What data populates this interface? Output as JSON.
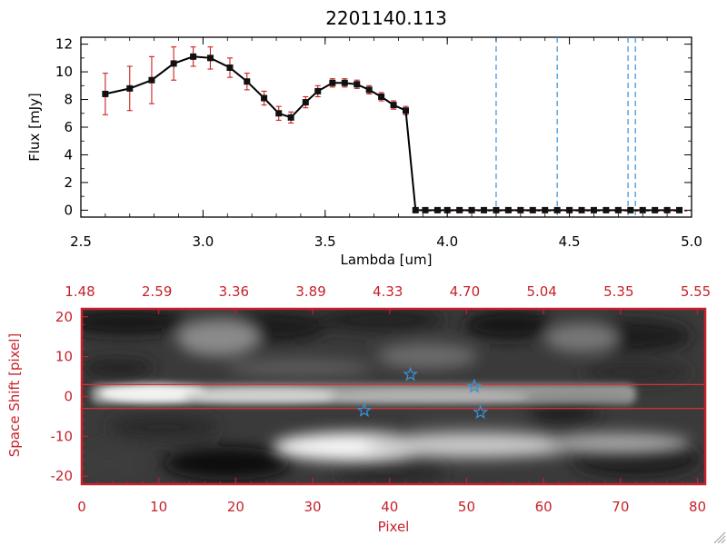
{
  "title": "2201140.113",
  "colors": {
    "data_line": "#000000",
    "error_bars": "#cc2020",
    "markers": "#111111",
    "reference_lines": "#3a8fd6",
    "image_frame": "#c8212a",
    "image_axis_text": "#c8212a",
    "aperture_lines": "#d83030",
    "stars": "#3a8fd6"
  },
  "chart_data": [
    {
      "type": "line",
      "title": "2201140.113",
      "xlabel": "Lambda [um]",
      "ylabel": "Flux [mJy]",
      "xlim": [
        2.5,
        5.0
      ],
      "ylim": [
        -0.5,
        12.5
      ],
      "x_ticks": [
        2.5,
        3.0,
        3.5,
        4.0,
        4.5,
        5.0
      ],
      "x_tick_labels": [
        "2.5",
        "3.0",
        "3.5",
        "4.0",
        "4.5",
        "5.0"
      ],
      "y_ticks": [
        0,
        2,
        4,
        6,
        8,
        10,
        12
      ],
      "y_tick_labels": [
        "0",
        "2",
        "4",
        "6",
        "8",
        "10",
        "12"
      ],
      "grid": false,
      "series": [
        {
          "x": [
            2.6,
            2.7,
            2.79,
            2.88,
            2.96,
            3.03,
            3.11,
            3.18,
            3.25,
            3.31,
            3.36,
            3.42,
            3.47,
            3.53,
            3.58,
            3.63,
            3.68,
            3.73,
            3.78,
            3.83,
            3.87,
            3.91,
            3.96,
            4.0,
            4.05,
            4.1,
            4.15,
            4.2,
            4.25,
            4.3,
            4.35,
            4.4,
            4.45,
            4.5,
            4.55,
            4.6,
            4.65,
            4.7,
            4.75,
            4.8,
            4.85,
            4.9,
            4.95
          ],
          "values": [
            8.4,
            8.8,
            9.4,
            10.6,
            11.1,
            11.0,
            10.3,
            9.3,
            8.1,
            7.0,
            6.7,
            7.8,
            8.6,
            9.2,
            9.2,
            9.1,
            8.7,
            8.2,
            7.6,
            7.2,
            0.0,
            0.0,
            0.0,
            0.0,
            0.0,
            0.0,
            0.0,
            0.0,
            0.0,
            0.0,
            0.0,
            0.0,
            0.0,
            0.0,
            0.0,
            0.0,
            0.0,
            0.0,
            0.0,
            0.0,
            0.0,
            0.0,
            0.0
          ],
          "errors": [
            1.5,
            1.6,
            1.7,
            1.2,
            0.7,
            0.8,
            0.7,
            0.6,
            0.5,
            0.5,
            0.4,
            0.4,
            0.4,
            0.3,
            0.3,
            0.3,
            0.3,
            0.3,
            0.3,
            0.3,
            0.0,
            0.0,
            0.0,
            0.0,
            0.0,
            0.0,
            0.0,
            0.0,
            0.0,
            0.0,
            0.0,
            0.0,
            0.0,
            0.0,
            0.0,
            0.0,
            0.0,
            0.0,
            0.0,
            0.0,
            0.0,
            0.0,
            0.0
          ]
        }
      ],
      "reference_lines_x": [
        4.2,
        4.45,
        4.74,
        4.77
      ]
    },
    {
      "type": "heatmap",
      "xlabel": "Pixel",
      "ylabel": "Space Shift [pixel]",
      "xlim": [
        0,
        81
      ],
      "ylim": [
        -22,
        22
      ],
      "x_ticks": [
        0,
        10,
        20,
        30,
        40,
        50,
        60,
        70,
        80
      ],
      "x_tick_labels": [
        "0",
        "10",
        "20",
        "30",
        "40",
        "50",
        "60",
        "70",
        "80"
      ],
      "y_ticks": [
        -20,
        -10,
        0,
        10,
        20
      ],
      "y_tick_labels": [
        "-20",
        "-10",
        "0",
        "10",
        "20"
      ],
      "top_axis_tick_labels": [
        "1.48",
        "2.59",
        "3.36",
        "3.89",
        "4.33",
        "4.70",
        "5.04",
        "5.35",
        "5.55"
      ],
      "aperture_lines_y": [
        3,
        -3
      ],
      "star_markers": [
        {
          "x": 42.7,
          "y": 5.5
        },
        {
          "x": 51.0,
          "y": 2.5
        },
        {
          "x": 36.7,
          "y": -3.5
        },
        {
          "x": 51.8,
          "y": -4.0
        }
      ]
    }
  ]
}
